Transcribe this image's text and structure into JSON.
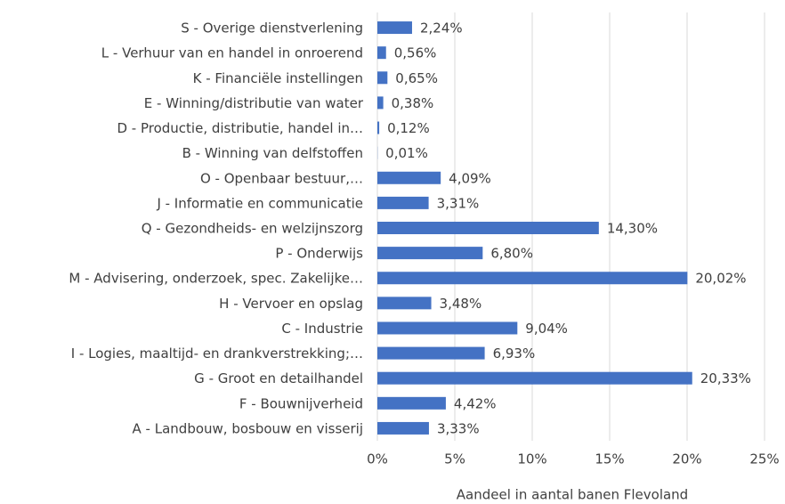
{
  "chart_data": {
    "type": "barh",
    "categories": [
      "S - Overige dienstverlening",
      "L - Verhuur van en handel in onroerend",
      "K - Financiële instellingen",
      "E - Winning/distributie van water",
      "D - Productie, distributie, handel in…",
      "B - Winning van delfstoffen",
      "O - Openbaar bestuur,…",
      "J - Informatie en communicatie",
      "Q - Gezondheids- en welzijnszorg",
      "P - Onderwijs",
      "M - Advisering, onderzoek, spec. Zakelijke…",
      "H - Vervoer en opslag",
      "C - Industrie",
      "I - Logies, maaltijd- en drankverstrekking;…",
      "G - Groot en detailhandel",
      "F - Bouwnijverheid",
      "A - Landbouw, bosbouw en visserij"
    ],
    "values": [
      2.24,
      0.56,
      0.65,
      0.38,
      0.12,
      0.01,
      4.09,
      3.31,
      14.3,
      6.8,
      20.02,
      3.48,
      9.04,
      6.93,
      20.33,
      4.42,
      3.33
    ],
    "value_labels": [
      "2,24%",
      "0,56%",
      "0,65%",
      "0,38%",
      "0,12%",
      "0,01%",
      "4,09%",
      "3,31%",
      "14,30%",
      "6,80%",
      "20,02%",
      "3,48%",
      "9,04%",
      "6,93%",
      "20,33%",
      "4,42%",
      "3,33%"
    ],
    "color": "#4472c4",
    "xlabel": "Aandeel in aantal banen Flevoland",
    "xlim": [
      0,
      25
    ],
    "xticks": [
      {
        "value": 0,
        "label": "0%"
      },
      {
        "value": 5,
        "label": "5%"
      },
      {
        "value": 10,
        "label": "10%"
      },
      {
        "value": 15,
        "label": "15%"
      },
      {
        "value": 20,
        "label": "20%"
      },
      {
        "value": 25,
        "label": "25%"
      }
    ],
    "grid": true
  }
}
